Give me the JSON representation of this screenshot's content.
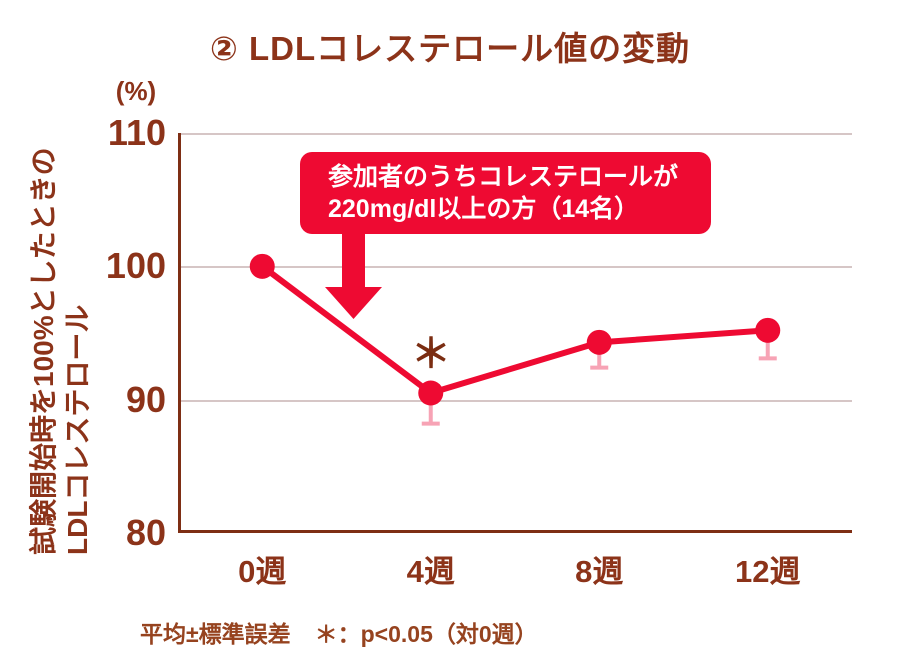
{
  "colors": {
    "accent_red": "#EE0A32",
    "text_brown": "#8C3319",
    "axis_brown": "#7E2E14",
    "error_bar_pink": "#F7A3B5",
    "gridline": "#D6C6C6",
    "annotation_text": "#FFFFFF",
    "background": "#FFFFFF"
  },
  "annotation": {
    "line1": "参加者のうちコレステロールが",
    "line2": "220mg/dl以上の方（14名）"
  },
  "footnote": {
    "mean_se": "平均±標準誤差",
    "significance": "＊：p<0.05（対0週）"
  },
  "chart_data": {
    "type": "line",
    "title": "② LDLコレステロール値の変動",
    "y_unit_label": "(%)",
    "ylabel_lines": [
      "試験開始時を100%としたときの",
      "LDLコレステロール"
    ],
    "categories": [
      "0週",
      "4週",
      "8週",
      "12週"
    ],
    "series": [
      {
        "name": "LDLコレステロール",
        "values": [
          100,
          90.5,
          94.3,
          95.2
        ],
        "error_lower": [
          null,
          2.3,
          1.9,
          2.1
        ],
        "significant": [
          false,
          true,
          false,
          false
        ]
      }
    ],
    "significance_symbol": "＊",
    "ylim": [
      80,
      110
    ],
    "yticks": [
      110,
      100,
      90,
      80
    ],
    "grid": "horizontal",
    "legend_position": "none"
  }
}
